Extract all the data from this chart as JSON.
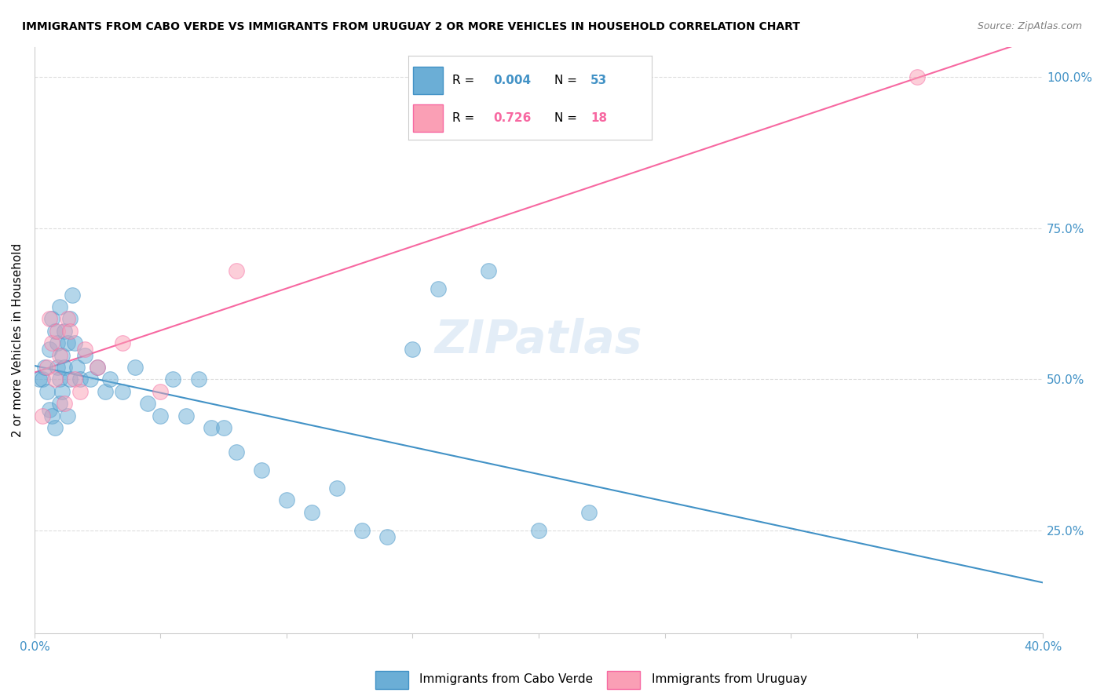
{
  "title": "IMMIGRANTS FROM CABO VERDE VS IMMIGRANTS FROM URUGUAY 2 OR MORE VEHICLES IN HOUSEHOLD CORRELATION CHART",
  "source": "Source: ZipAtlas.com",
  "ylabel": "2 or more Vehicles in Household",
  "yticks_right_vals": [
    0.25,
    0.5,
    0.75,
    1.0
  ],
  "legend_blue_r": "0.004",
  "legend_blue_n": "53",
  "legend_pink_r": "0.726",
  "legend_pink_n": "18",
  "color_blue": "#6baed6",
  "color_pink": "#fa9fb5",
  "color_blue_line": "#4292c6",
  "color_pink_line": "#f768a1",
  "color_axis_blue": "#4292c6",
  "watermark": "ZIPatlas",
  "cabo_verde_x": [
    0.002,
    0.003,
    0.004,
    0.005,
    0.006,
    0.006,
    0.007,
    0.007,
    0.008,
    0.008,
    0.009,
    0.009,
    0.01,
    0.01,
    0.01,
    0.011,
    0.011,
    0.012,
    0.012,
    0.013,
    0.013,
    0.014,
    0.014,
    0.015,
    0.016,
    0.017,
    0.018,
    0.02,
    0.022,
    0.025,
    0.028,
    0.03,
    0.035,
    0.04,
    0.045,
    0.05,
    0.055,
    0.06,
    0.065,
    0.07,
    0.075,
    0.08,
    0.09,
    0.1,
    0.11,
    0.12,
    0.13,
    0.14,
    0.15,
    0.16,
    0.18,
    0.2,
    0.22
  ],
  "cabo_verde_y": [
    0.5,
    0.5,
    0.52,
    0.48,
    0.55,
    0.45,
    0.6,
    0.44,
    0.58,
    0.42,
    0.52,
    0.56,
    0.62,
    0.5,
    0.46,
    0.54,
    0.48,
    0.58,
    0.52,
    0.56,
    0.44,
    0.6,
    0.5,
    0.64,
    0.56,
    0.52,
    0.5,
    0.54,
    0.5,
    0.52,
    0.48,
    0.5,
    0.48,
    0.52,
    0.46,
    0.44,
    0.5,
    0.44,
    0.5,
    0.42,
    0.42,
    0.38,
    0.35,
    0.3,
    0.28,
    0.32,
    0.25,
    0.24,
    0.55,
    0.65,
    0.68,
    0.25,
    0.28
  ],
  "uruguay_x": [
    0.003,
    0.005,
    0.006,
    0.007,
    0.008,
    0.009,
    0.01,
    0.012,
    0.013,
    0.014,
    0.016,
    0.018,
    0.02,
    0.025,
    0.035,
    0.05,
    0.08,
    0.35
  ],
  "uruguay_y": [
    0.44,
    0.52,
    0.6,
    0.56,
    0.5,
    0.58,
    0.54,
    0.46,
    0.6,
    0.58,
    0.5,
    0.48,
    0.55,
    0.52,
    0.56,
    0.48,
    0.68,
    1.0
  ],
  "xlim": [
    0.0,
    0.4
  ],
  "ylim": [
    0.08,
    1.05
  ],
  "grid_color": "#dddddd",
  "bg_color": "#ffffff"
}
